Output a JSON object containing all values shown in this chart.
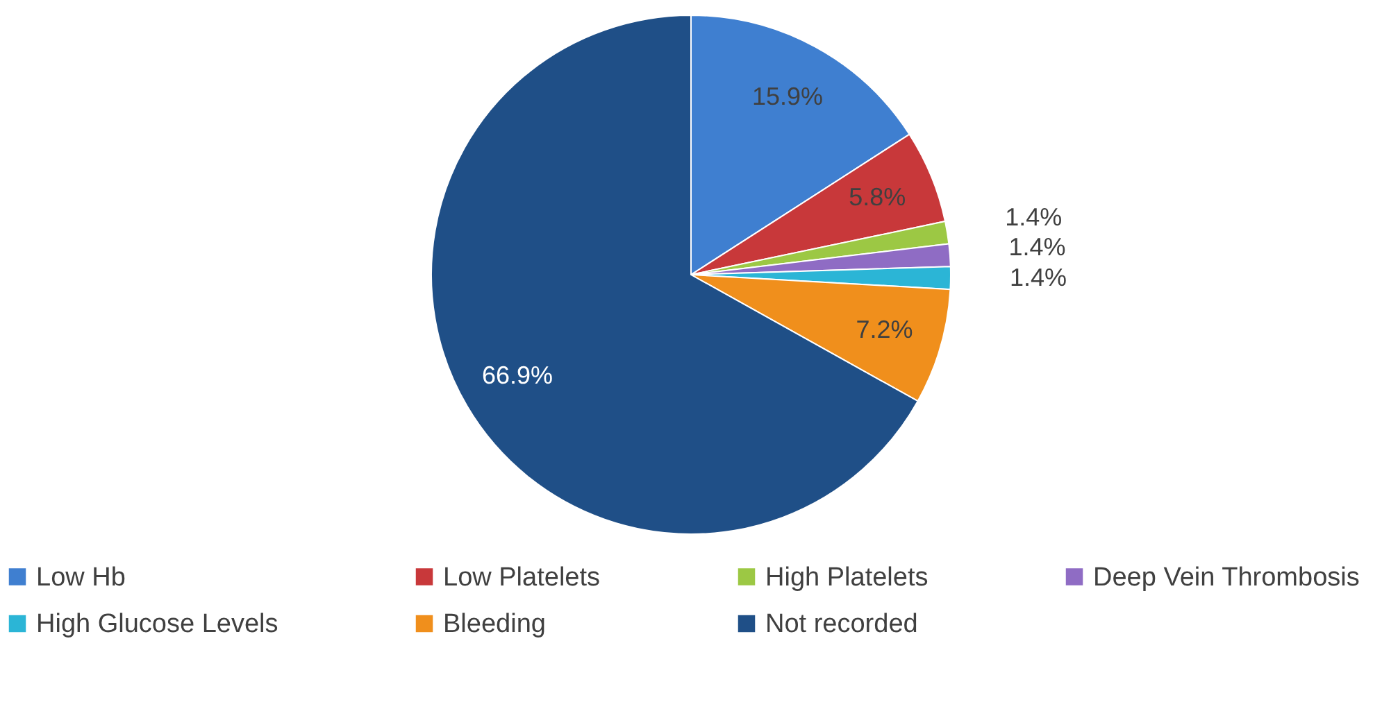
{
  "chart_data": {
    "type": "pie",
    "categories": [
      "Low Hb",
      "Low Platelets",
      "High Platelets",
      "Deep Vein Thrombosis",
      "High Glucose Levels",
      "Bleeding",
      "Not recorded"
    ],
    "values": [
      15.9,
      5.8,
      1.4,
      1.4,
      1.4,
      7.2,
      66.9
    ],
    "colors": [
      "#3f7fd0",
      "#c8383a",
      "#9cc844",
      "#8f6cc4",
      "#2bb5d6",
      "#f08f1c",
      "#1f4f87"
    ],
    "value_labels": [
      "15.9%",
      "5.8%",
      "1.4%",
      "1.4%",
      "1.4%",
      "7.2%",
      "66.9%"
    ],
    "legend": "bottom"
  }
}
